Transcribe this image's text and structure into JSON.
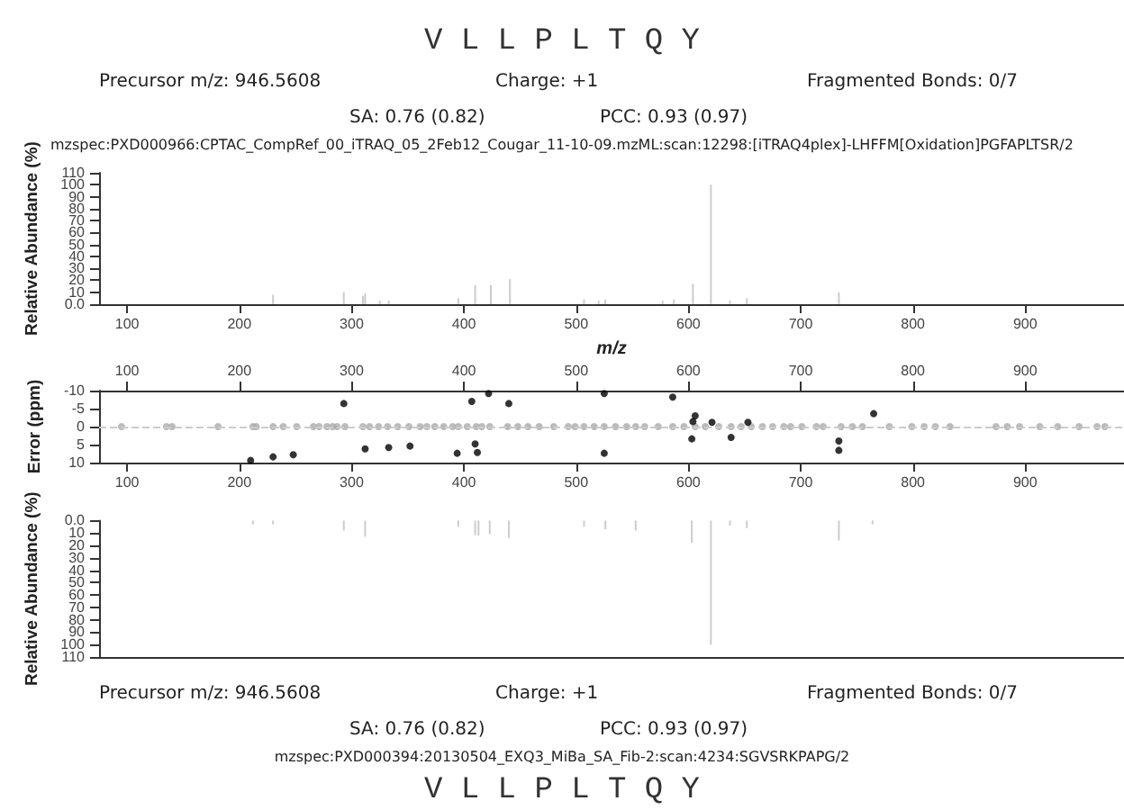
{
  "chart_data": [
    {
      "type": "bar",
      "title": "V L L P L T Q Y",
      "annotations": [
        "Precursor m/z: 946.5608",
        "Charge: +1",
        "Fragmented Bonds: 0/7",
        "SA: 0.76 (0.82)",
        "PCC: 0.93 (0.97)",
        "mzspec:PXD000966:CPTAC_CompRef_00_iTRAQ_05_2Feb12_Cougar_11-10-09.mzML:scan:12298:[iTRAQ4plex]-LHFFM[Oxidation]PGFAPLTSR/2"
      ],
      "xlabel": "m/z",
      "ylabel": "Relative Abundance (%)",
      "x": [
        230,
        293,
        310,
        312,
        325,
        333,
        395,
        410,
        424,
        441,
        507,
        520,
        526,
        577,
        587,
        604,
        620,
        637,
        652,
        734
      ],
      "values": [
        8,
        10,
        7,
        9,
        3,
        3,
        5,
        16,
        16,
        21,
        4,
        3,
        4,
        3,
        4,
        17,
        100,
        3,
        5,
        10
      ],
      "color": "#cccccc",
      "xlim": [
        75,
        988
      ],
      "xticks": [
        100,
        200,
        300,
        400,
        500,
        600,
        700,
        800,
        900
      ],
      "ylim": [
        0,
        110
      ],
      "yticks": [
        {
          "value": 0,
          "label": "0.0"
        },
        10,
        20,
        30,
        40,
        50,
        60,
        70,
        80,
        90,
        100,
        110
      ],
      "grid": false
    },
    {
      "type": "scatter",
      "ylabel": "Error (ppm)",
      "marker": "circle",
      "series": [
        {
          "color": "#aaaaaa",
          "x": [
            95,
            135,
            140,
            181,
            212,
            215,
            230,
            239,
            251,
            266,
            271,
            278,
            283,
            287,
            294,
            310,
            316,
            324,
            332,
            341,
            351,
            361,
            367,
            374,
            382,
            390,
            395,
            403,
            411,
            416,
            423,
            439,
            448,
            457,
            467,
            480,
            493,
            499,
            507,
            516,
            525,
            535,
            545,
            553,
            561,
            573,
            586,
            596,
            606,
            615,
            627,
            638,
            647,
            656,
            666,
            675,
            685,
            691,
            701,
            714,
            720,
            736,
            746,
            755,
            779,
            799,
            810,
            820,
            833,
            874,
            884,
            895,
            913,
            929,
            948,
            964,
            971
          ],
          "values": [
            0,
            0,
            0,
            0,
            0,
            0,
            0,
            0,
            0,
            0,
            0,
            0,
            0,
            0,
            0,
            0,
            0,
            0,
            0,
            0,
            0,
            0,
            0,
            0,
            0,
            0,
            0,
            0,
            0,
            0,
            0,
            0,
            0,
            0,
            0,
            0,
            0,
            0,
            0,
            0,
            0,
            0,
            0,
            0,
            0,
            0,
            0,
            0,
            0,
            0,
            0,
            0,
            0,
            0,
            0,
            0,
            0,
            0,
            0,
            0,
            0,
            0,
            0,
            0,
            0,
            0,
            0,
            0,
            0,
            0,
            0,
            0,
            0,
            0,
            0,
            0,
            0
          ]
        },
        {
          "color": "#000000",
          "x": [
            210,
            230,
            248,
            293,
            312,
            333,
            352,
            394,
            407,
            410,
            412,
            422,
            440,
            525,
            525,
            586,
            603,
            604,
            606,
            621,
            638,
            653,
            734,
            734,
            765
          ],
          "values": [
            9.4,
            8.4,
            7.8,
            -6.4,
            6.2,
            5.8,
            5.4,
            7.4,
            -7,
            4.8,
            7.2,
            -9.2,
            -6.4,
            -9.2,
            7.4,
            -8.2,
            3.4,
            -1.4,
            -3,
            -1.2,
            3,
            -1.2,
            4,
            6.6,
            -3.6
          ]
        }
      ],
      "xlim": [
        75,
        988
      ],
      "xticks": [
        100,
        200,
        300,
        400,
        500,
        600,
        700,
        800,
        900
      ],
      "x2lim": [
        75,
        988
      ],
      "x2ticks": [
        100,
        200,
        300,
        400,
        500,
        600,
        700,
        800,
        900
      ],
      "ylim": [
        10,
        -10
      ],
      "yticks": [
        -10,
        -5,
        0,
        5,
        10
      ],
      "ref_lines": [
        {
          "axis": "y",
          "value": 0,
          "line_style": "dashed",
          "color": "#cccccc"
        }
      ],
      "grid": false
    },
    {
      "type": "bar",
      "title": "V L L P L T Q Y",
      "annotations": [
        "Precursor m/z: 946.5608",
        "Charge: +1",
        "Fragmented Bonds: 0/7",
        "SA: 0.76 (0.82)",
        "PCC: 0.93 (0.97)",
        "mzspec:PXD000394:20130504_EXQ3_MiBa_SA_Fib-2:scan:4234:SGVSRKPAPG/2"
      ],
      "ylabel": "Relative Abundance (%)",
      "x": [
        212,
        230,
        293,
        312,
        395,
        410,
        413,
        423,
        440,
        507,
        526,
        553,
        603,
        620,
        637,
        652,
        734,
        764
      ],
      "values": [
        3,
        3,
        8,
        13,
        5,
        12,
        12,
        11,
        14,
        5,
        7,
        8,
        18,
        100,
        4,
        6,
        16,
        3
      ],
      "color": "#cccccc",
      "xlim": [
        75,
        988
      ],
      "ylim": [
        110,
        0
      ],
      "yticks": [
        {
          "value": 0,
          "label": "0.0"
        },
        10,
        20,
        30,
        40,
        50,
        60,
        70,
        80,
        90,
        100,
        110
      ],
      "tick_labels": "y",
      "grid": false
    }
  ]
}
